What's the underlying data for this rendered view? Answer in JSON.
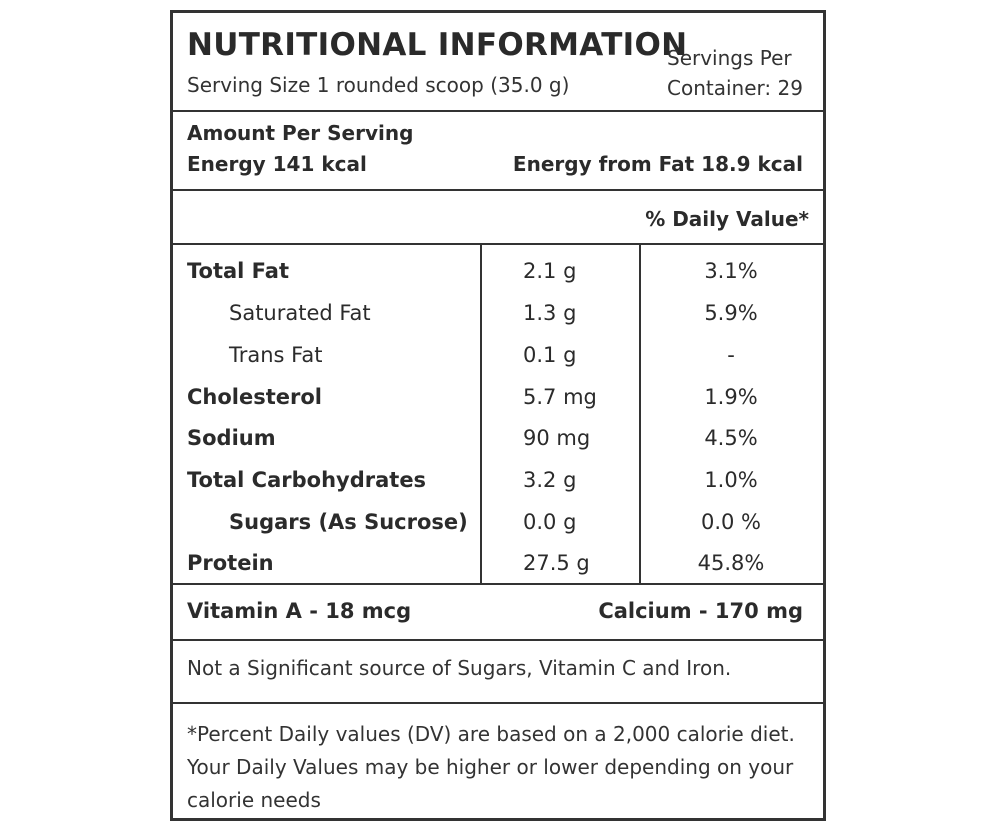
{
  "header": {
    "title": "NUTRITIONAL INFORMATION",
    "serving_size": "Serving Size 1 rounded scoop (35.0 g)",
    "servings_per_line1": "Servings Per",
    "servings_per_line2": "Container: 29"
  },
  "energy": {
    "amount_per_serving": "Amount Per Serving",
    "energy": "Energy 141 kcal",
    "energy_from_fat": "Energy from Fat 18.9 kcal"
  },
  "daily_value_header": "% Daily Value*",
  "nutrients": [
    {
      "name": "Total Fat",
      "amount": "2.1 g",
      "dv": "3.1%"
    },
    {
      "name": "Saturated Fat",
      "amount": "1.3 g",
      "dv": "5.9%"
    },
    {
      "name": "Trans Fat",
      "amount": "0.1 g",
      "dv": "-"
    },
    {
      "name": "Cholesterol",
      "amount": "5.7 mg",
      "dv": "1.9%"
    },
    {
      "name": "Sodium",
      "amount": "90 mg",
      "dv": "4.5%"
    },
    {
      "name": "Total Carbohydrates",
      "amount": "3.2 g",
      "dv": "1.0%"
    },
    {
      "name": "Sugars (As Sucrose)",
      "amount": "0.0 g",
      "dv": "0.0 %"
    },
    {
      "name": "Protein",
      "amount": "27.5 g",
      "dv": "45.8%"
    }
  ],
  "minerals": {
    "vitamin_a": "Vitamin A - 18 mcg",
    "calcium": "Calcium - 170 mg"
  },
  "not_significant": "Not a Significant source of Sugars, Vitamin C and Iron.",
  "footnote": "*Percent Daily values (DV) are based on a 2,000 calorie diet. Your Daily Values may be higher or lower depending on your calorie needs"
}
